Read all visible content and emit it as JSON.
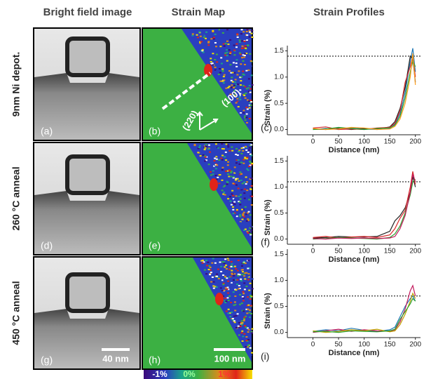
{
  "header": {
    "columns": [
      "Bright field image",
      "Strain Map",
      "Strain Profiles"
    ]
  },
  "rows": [
    {
      "label": "9nm Ni depot.",
      "panels": [
        "(a)",
        "(b)",
        "(c)"
      ]
    },
    {
      "label": "260 °C anneal",
      "panels": [
        "(d)",
        "(e)",
        "(f)"
      ]
    },
    {
      "label": "450 °C anneal",
      "panels": [
        "(g)",
        "(h)",
        "(i)"
      ]
    }
  ],
  "annotations": {
    "directions": [
      "(220)",
      "(100)"
    ],
    "scale_bars": [
      "40 nm",
      "100 nm"
    ]
  },
  "colorbar": {
    "labels": [
      "-1%",
      "0%",
      "1%"
    ]
  },
  "chart_data": [
    {
      "type": "line",
      "xlabel": "Distance (nm)",
      "ylabel": "Strain (%)",
      "xlim": [
        -50,
        210
      ],
      "ylim": [
        -0.1,
        1.6
      ],
      "xticks": [
        0,
        50,
        100,
        150,
        200
      ],
      "yticks": [
        {
          "value": 0,
          "label": "0.0"
        },
        0.5,
        {
          "value": 1,
          "label": "1.0"
        },
        1.5
      ],
      "reference_line": 1.4,
      "x": [
        0,
        25,
        50,
        75,
        100,
        125,
        150,
        160,
        170,
        180,
        190,
        195,
        200
      ],
      "series": [
        {
          "color": "#1f77b4",
          "values": [
            0,
            0.02,
            0,
            0.03,
            0.01,
            0,
            0.02,
            0.1,
            0.3,
            0.7,
            1.3,
            1.55,
            1.1
          ]
        },
        {
          "color": "#222222",
          "values": [
            0.01,
            0,
            0.02,
            0,
            0.02,
            0.01,
            0.05,
            0.15,
            0.4,
            0.8,
            1.4,
            1.35,
            0.9
          ]
        },
        {
          "color": "#d62728",
          "values": [
            0.03,
            0.05,
            0,
            0.01,
            0,
            0.03,
            0.04,
            0.12,
            0.35,
            0.9,
            1.2,
            1.4,
            1.0
          ]
        },
        {
          "color": "#2ca02c",
          "values": [
            0,
            0.01,
            0.04,
            0.02,
            0,
            0.02,
            0.03,
            0.08,
            0.25,
            0.6,
            1.1,
            1.3,
            1.2
          ]
        },
        {
          "color": "#ff9f1c",
          "values": [
            0.02,
            0,
            0.01,
            0.04,
            0.03,
            0,
            0.01,
            0.06,
            0.2,
            0.5,
            1.0,
            1.45,
            0.85
          ]
        }
      ]
    },
    {
      "type": "line",
      "xlabel": "Distance (nm)",
      "ylabel": "Strain (%)",
      "xlim": [
        -50,
        210
      ],
      "ylim": [
        -0.1,
        1.6
      ],
      "xticks": [
        0,
        50,
        100,
        150,
        200
      ],
      "yticks": [
        {
          "value": 0,
          "label": "0.0"
        },
        0.5,
        {
          "value": 1,
          "label": "1.0"
        },
        1.5
      ],
      "reference_line": 1.1,
      "x": [
        0,
        25,
        50,
        75,
        100,
        125,
        150,
        160,
        170,
        180,
        190,
        195,
        200
      ],
      "series": [
        {
          "color": "#222222",
          "values": [
            0.02,
            0.03,
            0.05,
            0.04,
            0.04,
            0.05,
            0.15,
            0.35,
            0.45,
            0.6,
            0.9,
            1.2,
            1.0
          ]
        },
        {
          "color": "#d62728",
          "values": [
            0.03,
            0.05,
            0.02,
            0.04,
            0.05,
            0.03,
            0.08,
            0.2,
            0.4,
            0.55,
            1.0,
            1.3,
            1.05
          ]
        },
        {
          "color": "#2ca02c",
          "values": [
            0,
            0.01,
            0.03,
            0.02,
            0.01,
            0,
            0.03,
            0.1,
            0.25,
            0.5,
            0.85,
            1.1,
            1.15
          ]
        },
        {
          "color": "#c2185b",
          "values": [
            0.01,
            0,
            0.02,
            0.01,
            0.02,
            0.01,
            0.02,
            0.05,
            0.2,
            0.45,
            0.9,
            1.25,
            1.1
          ]
        }
      ]
    },
    {
      "type": "line",
      "xlabel": "Distance (nm)",
      "ylabel": "Strain (%)",
      "xlim": [
        -50,
        210
      ],
      "ylim": [
        -0.1,
        1.6
      ],
      "xticks": [
        0,
        50,
        100,
        150,
        200
      ],
      "yticks": [
        {
          "value": 0,
          "label": "0.0"
        },
        0.5,
        {
          "value": 1,
          "label": "1.0"
        },
        1.5
      ],
      "reference_line": 0.7,
      "x": [
        0,
        25,
        50,
        75,
        100,
        125,
        150,
        160,
        170,
        180,
        190,
        195,
        200
      ],
      "series": [
        {
          "color": "#1f77b4",
          "values": [
            0.02,
            0.05,
            0.03,
            0.08,
            0.04,
            0.02,
            0.05,
            0.1,
            0.3,
            0.5,
            0.65,
            0.7,
            0.6
          ]
        },
        {
          "color": "#c2185b",
          "values": [
            0,
            0.03,
            0.06,
            0.02,
            0.05,
            0.03,
            0.02,
            0.05,
            0.2,
            0.45,
            0.8,
            0.9,
            0.7
          ]
        },
        {
          "color": "#bfa000",
          "values": [
            0.03,
            0,
            0.02,
            0.05,
            0.03,
            0.06,
            0.01,
            0.03,
            0.15,
            0.35,
            0.6,
            0.75,
            0.65
          ]
        },
        {
          "color": "#2ca02c",
          "values": [
            0.01,
            0.02,
            0,
            0.03,
            0.02,
            0.01,
            0.03,
            0.06,
            0.25,
            0.4,
            0.55,
            0.65,
            0.6
          ]
        }
      ]
    }
  ]
}
